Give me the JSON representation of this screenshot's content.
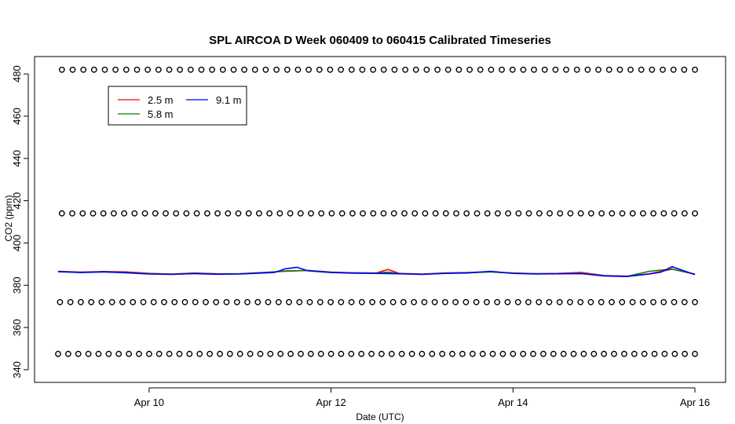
{
  "chart_data": {
    "type": "line",
    "title": "SPL AIRCOA D  Week 060409 to 060415  Calibrated Timeseries",
    "xlabel": "Date (UTC)",
    "ylabel": "CO2 (ppm)",
    "xlim": [
      "2006-04-09",
      "2006-04-16"
    ],
    "ylim": [
      337,
      486
    ],
    "x_ticks": [
      {
        "value": "2006-04-10",
        "label": "Apr 10"
      },
      {
        "value": "2006-04-12",
        "label": "Apr 12"
      },
      {
        "value": "2006-04-14",
        "label": "Apr 14"
      },
      {
        "value": "2006-04-16",
        "label": "Apr 16"
      }
    ],
    "y_ticks": [
      340,
      360,
      380,
      400,
      420,
      440,
      460,
      480
    ],
    "legend_position": "top-left",
    "series": [
      {
        "name": "2.5 m",
        "color": "#ff0000",
        "points": [
          [
            "2006-04-09T00:00",
            386.6
          ],
          [
            "2006-04-09T06:00",
            386.2
          ],
          [
            "2006-04-09T12:00",
            386.5
          ],
          [
            "2006-04-09T18:00",
            386.3
          ],
          [
            "2006-04-10T00:00",
            385.6
          ],
          [
            "2006-04-10T06:00",
            385.3
          ],
          [
            "2006-04-10T12:00",
            385.8
          ],
          [
            "2006-04-10T18:00",
            385.4
          ],
          [
            "2006-04-11T00:00",
            385.5
          ],
          [
            "2006-04-11T06:00",
            386.0
          ],
          [
            "2006-04-11T12:00",
            386.6
          ],
          [
            "2006-04-11T18:00",
            387.0
          ],
          [
            "2006-04-12T00:00",
            386.2
          ],
          [
            "2006-04-12T06:00",
            385.9
          ],
          [
            "2006-04-12T12:00",
            385.8
          ],
          [
            "2006-04-12T15:00",
            387.5
          ],
          [
            "2006-04-12T18:00",
            385.6
          ],
          [
            "2006-04-13T00:00",
            385.3
          ],
          [
            "2006-04-13T06:00",
            385.8
          ],
          [
            "2006-04-13T12:00",
            386.0
          ],
          [
            "2006-04-13T18:00",
            386.4
          ],
          [
            "2006-04-14T00:00",
            385.8
          ],
          [
            "2006-04-14T06:00",
            385.5
          ],
          [
            "2006-04-14T12:00",
            385.6
          ],
          [
            "2006-04-14T18:00",
            386.0
          ],
          [
            "2006-04-15T00:00",
            384.6
          ],
          [
            "2006-04-15T06:00",
            384.3
          ],
          [
            "2006-04-15T12:00",
            385.4
          ],
          [
            "2006-04-15T18:00",
            387.6
          ],
          [
            "2006-04-16T00:00",
            385.3
          ]
        ]
      },
      {
        "name": "5.8 m",
        "color": "#008000",
        "points": [
          [
            "2006-04-09T00:00",
            386.5
          ],
          [
            "2006-04-09T06:00",
            386.1
          ],
          [
            "2006-04-09T12:00",
            386.4
          ],
          [
            "2006-04-09T18:00",
            386.0
          ],
          [
            "2006-04-10T00:00",
            385.4
          ],
          [
            "2006-04-10T06:00",
            385.2
          ],
          [
            "2006-04-10T12:00",
            385.6
          ],
          [
            "2006-04-10T18:00",
            385.3
          ],
          [
            "2006-04-11T00:00",
            385.4
          ],
          [
            "2006-04-11T06:00",
            385.9
          ],
          [
            "2006-04-11T12:00",
            386.8
          ],
          [
            "2006-04-11T18:00",
            387.0
          ],
          [
            "2006-04-12T00:00",
            386.1
          ],
          [
            "2006-04-12T06:00",
            385.8
          ],
          [
            "2006-04-12T12:00",
            385.7
          ],
          [
            "2006-04-12T15:00",
            386.2
          ],
          [
            "2006-04-12T18:00",
            385.5
          ],
          [
            "2006-04-13T00:00",
            385.2
          ],
          [
            "2006-04-13T06:00",
            385.7
          ],
          [
            "2006-04-13T12:00",
            385.9
          ],
          [
            "2006-04-13T18:00",
            386.3
          ],
          [
            "2006-04-14T00:00",
            385.7
          ],
          [
            "2006-04-14T06:00",
            385.4
          ],
          [
            "2006-04-14T12:00",
            385.5
          ],
          [
            "2006-04-14T18:00",
            385.6
          ],
          [
            "2006-04-15T00:00",
            384.5
          ],
          [
            "2006-04-15T06:00",
            384.2
          ],
          [
            "2006-04-15T12:00",
            386.6
          ],
          [
            "2006-04-15T18:00",
            387.7
          ],
          [
            "2006-04-16T00:00",
            385.2
          ]
        ]
      },
      {
        "name": "9.1 m",
        "color": "#0000ff",
        "points": [
          [
            "2006-04-09T00:00",
            386.4
          ],
          [
            "2006-04-09T06:00",
            386.0
          ],
          [
            "2006-04-09T12:00",
            386.3
          ],
          [
            "2006-04-09T18:00",
            385.9
          ],
          [
            "2006-04-10T00:00",
            385.3
          ],
          [
            "2006-04-10T06:00",
            385.1
          ],
          [
            "2006-04-10T12:00",
            385.5
          ],
          [
            "2006-04-10T18:00",
            385.2
          ],
          [
            "2006-04-11T00:00",
            385.3
          ],
          [
            "2006-04-11T06:00",
            385.8
          ],
          [
            "2006-04-11T09:00",
            386.0
          ],
          [
            "2006-04-11T12:00",
            387.8
          ],
          [
            "2006-04-11T15:00",
            388.5
          ],
          [
            "2006-04-11T18:00",
            386.8
          ],
          [
            "2006-04-12T00:00",
            386.0
          ],
          [
            "2006-04-12T06:00",
            385.7
          ],
          [
            "2006-04-12T12:00",
            385.6
          ],
          [
            "2006-04-12T18:00",
            385.4
          ],
          [
            "2006-04-13T00:00",
            385.1
          ],
          [
            "2006-04-13T06:00",
            385.6
          ],
          [
            "2006-04-13T12:00",
            385.8
          ],
          [
            "2006-04-13T18:00",
            386.6
          ],
          [
            "2006-04-14T00:00",
            385.6
          ],
          [
            "2006-04-14T06:00",
            385.3
          ],
          [
            "2006-04-14T12:00",
            385.4
          ],
          [
            "2006-04-14T18:00",
            385.5
          ],
          [
            "2006-04-15T00:00",
            384.4
          ],
          [
            "2006-04-15T06:00",
            384.1
          ],
          [
            "2006-04-15T12:00",
            385.3
          ],
          [
            "2006-04-15T15:00",
            386.2
          ],
          [
            "2006-04-15T18:00",
            388.8
          ],
          [
            "2006-04-15T21:00",
            386.9
          ],
          [
            "2006-04-16T00:00",
            385.0
          ]
        ]
      }
    ],
    "reference_rows": [
      {
        "y": 482,
        "x_start": "2006-04-09T01:00",
        "x_end": "2006-04-16T00:00",
        "count": 60
      },
      {
        "y": 414,
        "x_start": "2006-04-09T01:00",
        "x_end": "2006-04-16T00:00",
        "count": 62
      },
      {
        "y": 372,
        "x_start": "2006-04-09T00:30",
        "x_end": "2006-04-16T00:00",
        "count": 62
      },
      {
        "y": 347.5,
        "x_start": "2006-04-09T00:00",
        "x_end": "2006-04-16T00:00",
        "count": 64
      }
    ]
  }
}
